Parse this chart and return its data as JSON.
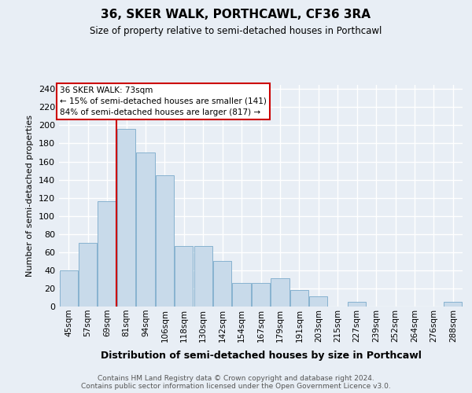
{
  "title": "36, SKER WALK, PORTHCAWL, CF36 3RA",
  "subtitle": "Size of property relative to semi-detached houses in Porthcawl",
  "xlabel": "Distribution of semi-detached houses by size in Porthcawl",
  "ylabel": "Number of semi-detached properties",
  "categories": [
    "45sqm",
    "57sqm",
    "69sqm",
    "81sqm",
    "94sqm",
    "106sqm",
    "118sqm",
    "130sqm",
    "142sqm",
    "154sqm",
    "167sqm",
    "179sqm",
    "191sqm",
    "203sqm",
    "215sqm",
    "227sqm",
    "239sqm",
    "252sqm",
    "264sqm",
    "276sqm",
    "288sqm"
  ],
  "values": [
    40,
    70,
    116,
    196,
    170,
    145,
    67,
    67,
    50,
    26,
    26,
    31,
    18,
    11,
    0,
    5,
    0,
    0,
    0,
    0,
    5
  ],
  "bar_color": "#c8daea",
  "bar_edge_color": "#7aaaca",
  "property_size": 73,
  "property_label": "36 SKER WALK: 73sqm",
  "smaller_pct": 15,
  "smaller_count": 141,
  "larger_pct": 84,
  "larger_count": 817,
  "vline_color": "#cc0000",
  "vline_x": 2.5,
  "annotation_box_color": "#ffffff",
  "annotation_box_edge": "#cc0000",
  "ylim": [
    0,
    245
  ],
  "yticks": [
    0,
    20,
    40,
    60,
    80,
    100,
    120,
    140,
    160,
    180,
    200,
    220,
    240
  ],
  "background_color": "#e8eef5",
  "grid_color": "#ffffff",
  "footer_line1": "Contains HM Land Registry data © Crown copyright and database right 2024.",
  "footer_line2": "Contains public sector information licensed under the Open Government Licence v3.0."
}
